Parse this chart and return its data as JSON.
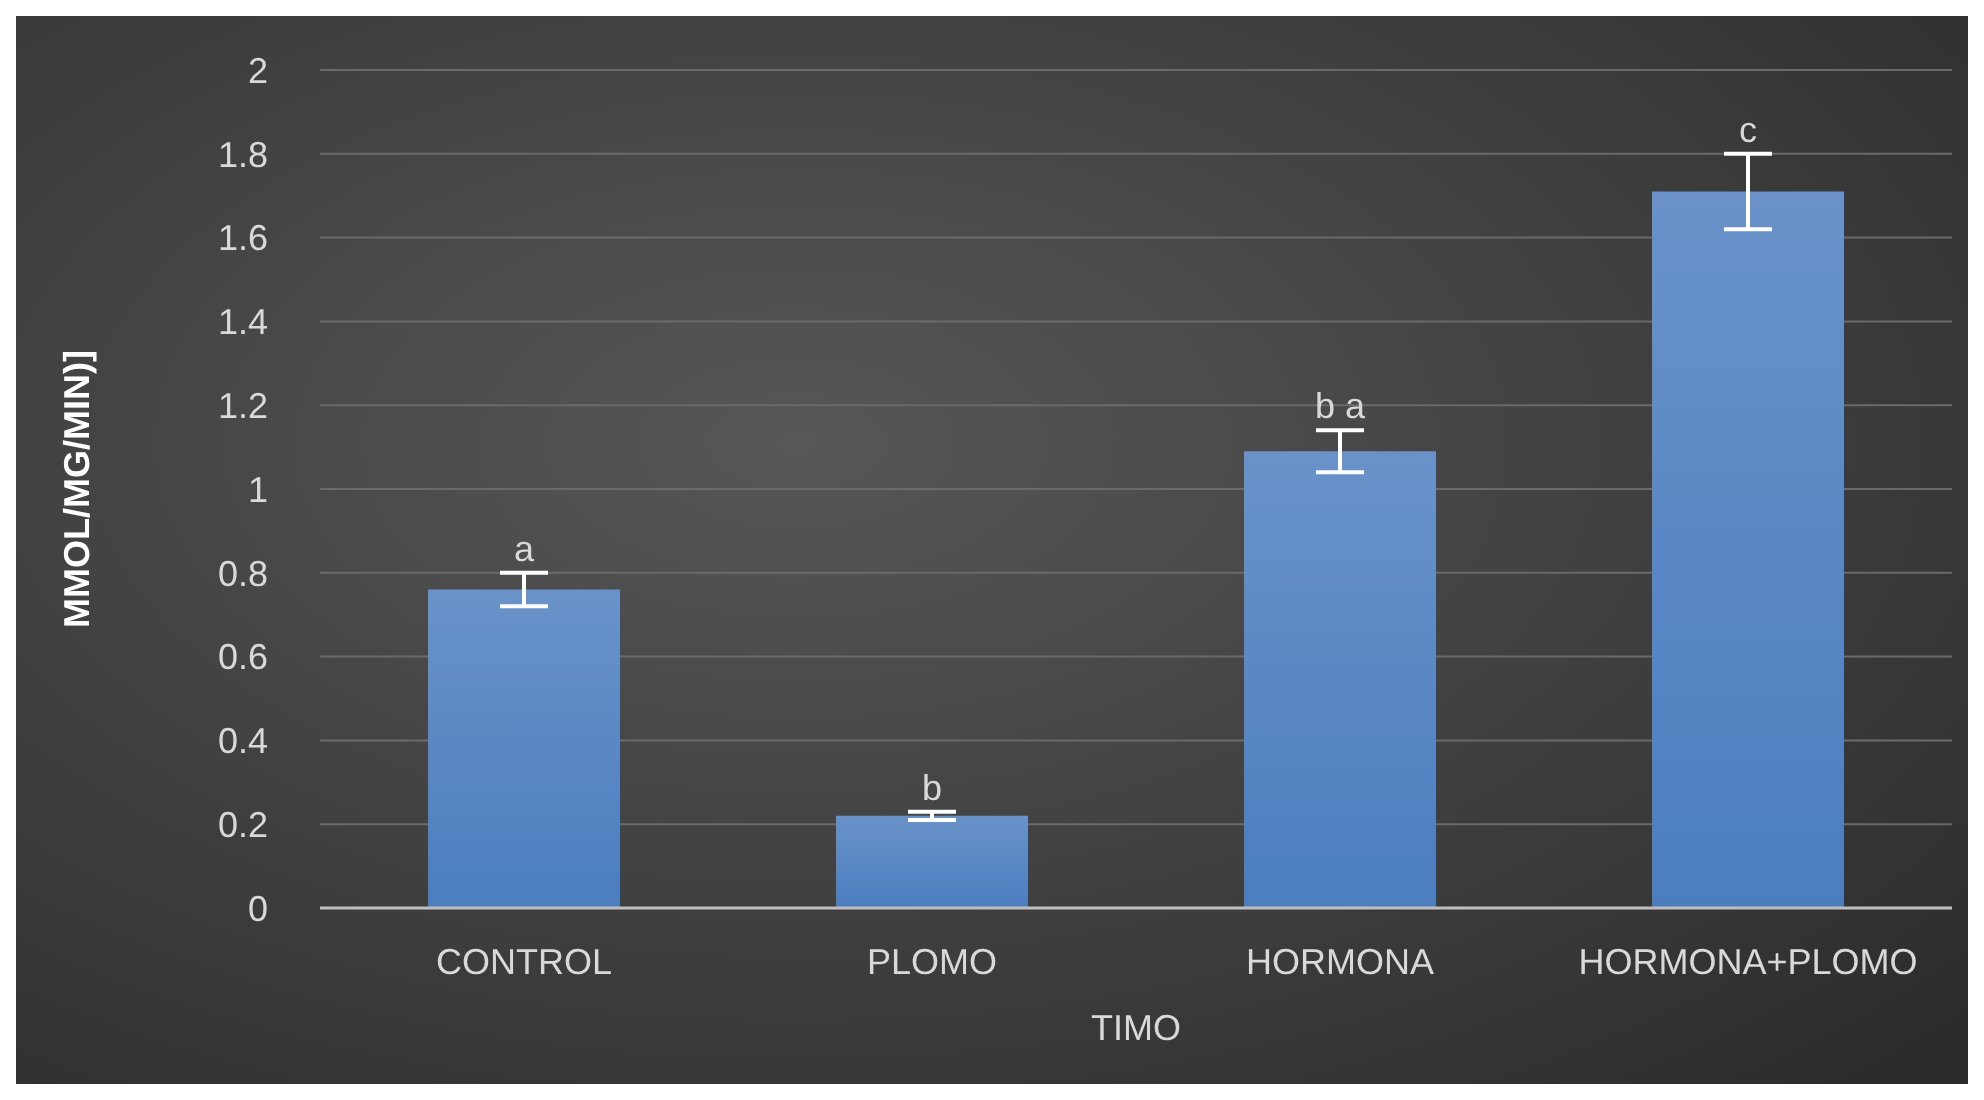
{
  "chart_data": {
    "type": "bar",
    "ylabel": "MMOL/MG/MIN)]",
    "xlabel": "TIMO",
    "categories": [
      "CONTROL",
      "PLOMO",
      "HORMONA",
      "HORMONA+PLOMO"
    ],
    "values": [
      0.76,
      0.22,
      1.09,
      1.71
    ],
    "errors": [
      0.04,
      0.01,
      0.05,
      0.09
    ],
    "color": "#4a7ebf",
    "ylim": [
      0,
      2
    ],
    "yticks": [
      0,
      0.2,
      0.4,
      0.6,
      0.8,
      1,
      1.2,
      1.4,
      1.6,
      1.8,
      2
    ],
    "grid": "y",
    "annotations": [
      "a",
      "b",
      "b a",
      "c"
    ]
  }
}
